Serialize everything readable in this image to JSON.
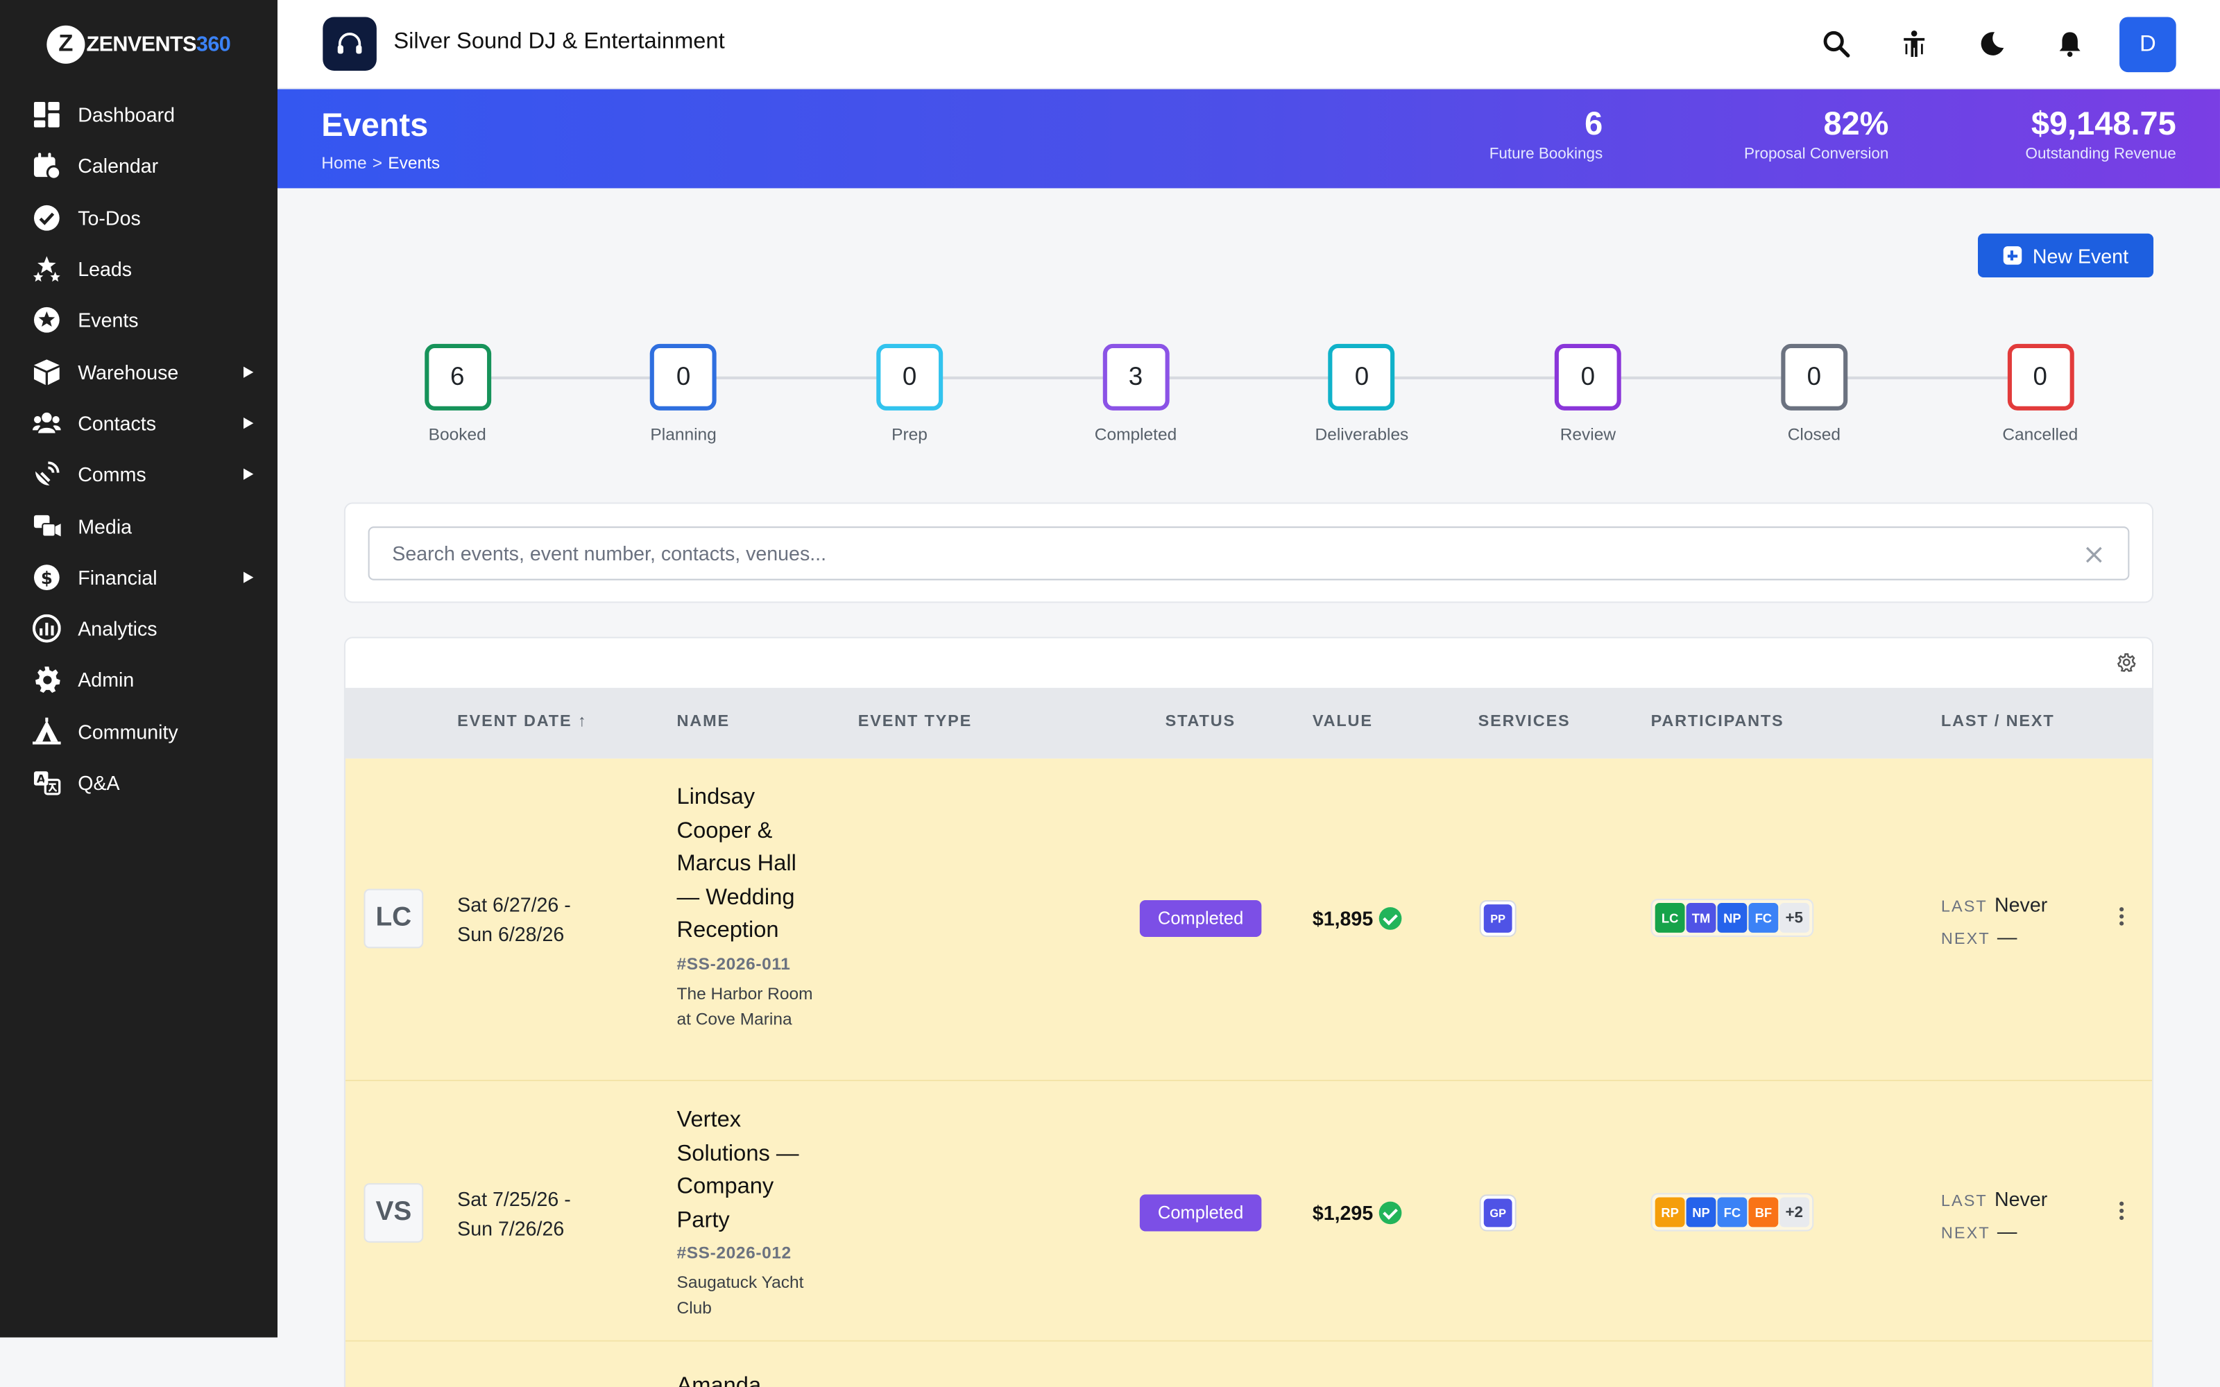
{
  "brand": {
    "mark": "Z",
    "name_main": "ZENVENTS",
    "name_num": "360"
  },
  "sidebar": {
    "items": [
      {
        "label": "Dashboard",
        "icon": "dashboard-icon",
        "submenu": false
      },
      {
        "label": "Calendar",
        "icon": "calendar-icon",
        "submenu": false
      },
      {
        "label": "To-Dos",
        "icon": "check-circle-icon",
        "submenu": false
      },
      {
        "label": "Leads",
        "icon": "stars-icon",
        "submenu": false
      },
      {
        "label": "Events",
        "icon": "star-circle-icon",
        "submenu": false
      },
      {
        "label": "Warehouse",
        "icon": "box-icon",
        "submenu": true
      },
      {
        "label": "Contacts",
        "icon": "users-icon",
        "submenu": true
      },
      {
        "label": "Comms",
        "icon": "satellite-icon",
        "submenu": true
      },
      {
        "label": "Media",
        "icon": "photo-video-icon",
        "submenu": false
      },
      {
        "label": "Financial",
        "icon": "dollar-circle-icon",
        "submenu": true
      },
      {
        "label": "Analytics",
        "icon": "chart-circle-icon",
        "submenu": false
      },
      {
        "label": "Admin",
        "icon": "gear-icon",
        "submenu": false
      },
      {
        "label": "Community",
        "icon": "campground-icon",
        "submenu": false
      },
      {
        "label": "Q&A",
        "icon": "language-icon",
        "submenu": false
      }
    ]
  },
  "topbar": {
    "org_name": "Silver Sound DJ & Entertainment",
    "avatar_initial": "D"
  },
  "banner": {
    "title": "Events",
    "breadcrumb": {
      "home": "Home",
      "sep": ">",
      "current": "Events"
    },
    "kpis": [
      {
        "value": "6",
        "caption": "Future Bookings"
      },
      {
        "value": "82%",
        "caption": "Proposal Conversion"
      },
      {
        "value": "$9,148.75",
        "caption": "Outstanding Revenue"
      }
    ]
  },
  "new_event_label": "New Event",
  "pipeline": [
    {
      "count": "6",
      "name": "Booked",
      "color": "#16935a"
    },
    {
      "count": "0",
      "name": "Planning",
      "color": "#2f6fdf"
    },
    {
      "count": "0",
      "name": "Prep",
      "color": "#32c3ee"
    },
    {
      "count": "3",
      "name": "Completed",
      "color": "#8b53e6"
    },
    {
      "count": "0",
      "name": "Deliverables",
      "color": "#10b2c9"
    },
    {
      "count": "0",
      "name": "Review",
      "color": "#8a36d9"
    },
    {
      "count": "0",
      "name": "Closed",
      "color": "#6b7280"
    },
    {
      "count": "0",
      "name": "Cancelled",
      "color": "#e23b3b"
    }
  ],
  "search": {
    "placeholder": "Search events, event number, contacts, venues..."
  },
  "table": {
    "headers": {
      "date": "EVENT DATE ↑",
      "name": "NAME",
      "type": "EVENT TYPE",
      "status": "STATUS",
      "value": "VALUE",
      "services": "SERVICES",
      "participants": "PARTICIPANTS",
      "lastnext": "LAST / NEXT"
    },
    "rows": [
      {
        "initials": "LC",
        "date_line1": "Sat 6/27/26 -",
        "date_line2": "Sun 6/28/26",
        "name": "Lindsay Cooper & Marcus Hall — Wedding Reception",
        "number": "#SS-2026-011",
        "venue": "The Harbor Room at Cove Marina",
        "status": "Completed",
        "value": "$1,895",
        "services": [
          "PP"
        ],
        "participants": [
          {
            "initials": "LC",
            "color": "#16a34a"
          },
          {
            "initials": "TM",
            "color": "#4f53e6"
          },
          {
            "initials": "NP",
            "color": "#2563eb"
          },
          {
            "initials": "FC",
            "color": "#3b82f6"
          }
        ],
        "more": "+5",
        "last_key": "LAST",
        "last_val": "Never",
        "next_key": "NEXT",
        "next_val": "—"
      },
      {
        "initials": "VS",
        "date_line1": "Sat 7/25/26 -",
        "date_line2": "Sun 7/26/26",
        "name": "Vertex Solutions — Company Party",
        "number": "#SS-2026-012",
        "venue": "Saugatuck Yacht Club",
        "status": "Completed",
        "value": "$1,295",
        "services": [
          "GP"
        ],
        "participants": [
          {
            "initials": "RP",
            "color": "#f59e0b"
          },
          {
            "initials": "NP",
            "color": "#2563eb"
          },
          {
            "initials": "FC",
            "color": "#3b82f6"
          },
          {
            "initials": "BF",
            "color": "#f97316"
          }
        ],
        "more": "+2",
        "last_key": "LAST",
        "last_val": "Never",
        "next_key": "NEXT",
        "next_val": "—"
      },
      {
        "name": "Amanda"
      }
    ]
  }
}
